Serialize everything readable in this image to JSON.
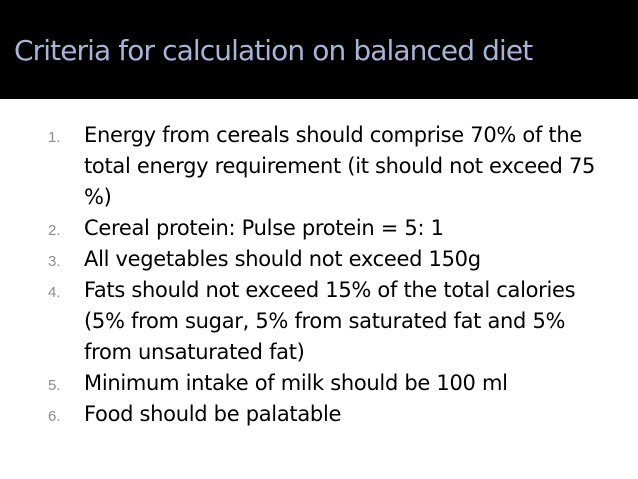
{
  "slide": {
    "title": "Criteria for calculation on balanced diet",
    "colors": {
      "title_bar": "#000000",
      "title_text": "#a7b4d6",
      "body_text": "#000000",
      "number_text": "#8c8c8c",
      "background": "#ffffff"
    },
    "items": [
      {
        "number": "1.",
        "text": "Energy from cereals should comprise 70% of the total energy requirement (it should not exceed 75 %)"
      },
      {
        "number": "2.",
        "text": "Cereal protein: Pulse protein = 5: 1"
      },
      {
        "number": "3.",
        "text": "All vegetables should not exceed 150g"
      },
      {
        "number": "4.",
        "text": "Fats should not exceed 15% of the total calories (5% from sugar, 5% from saturated fat and 5% from unsaturated fat)"
      },
      {
        "number": "5.",
        "text": "Minimum intake of milk should be 100 ml"
      },
      {
        "number": "6.",
        "text": "Food should be palatable"
      }
    ]
  }
}
